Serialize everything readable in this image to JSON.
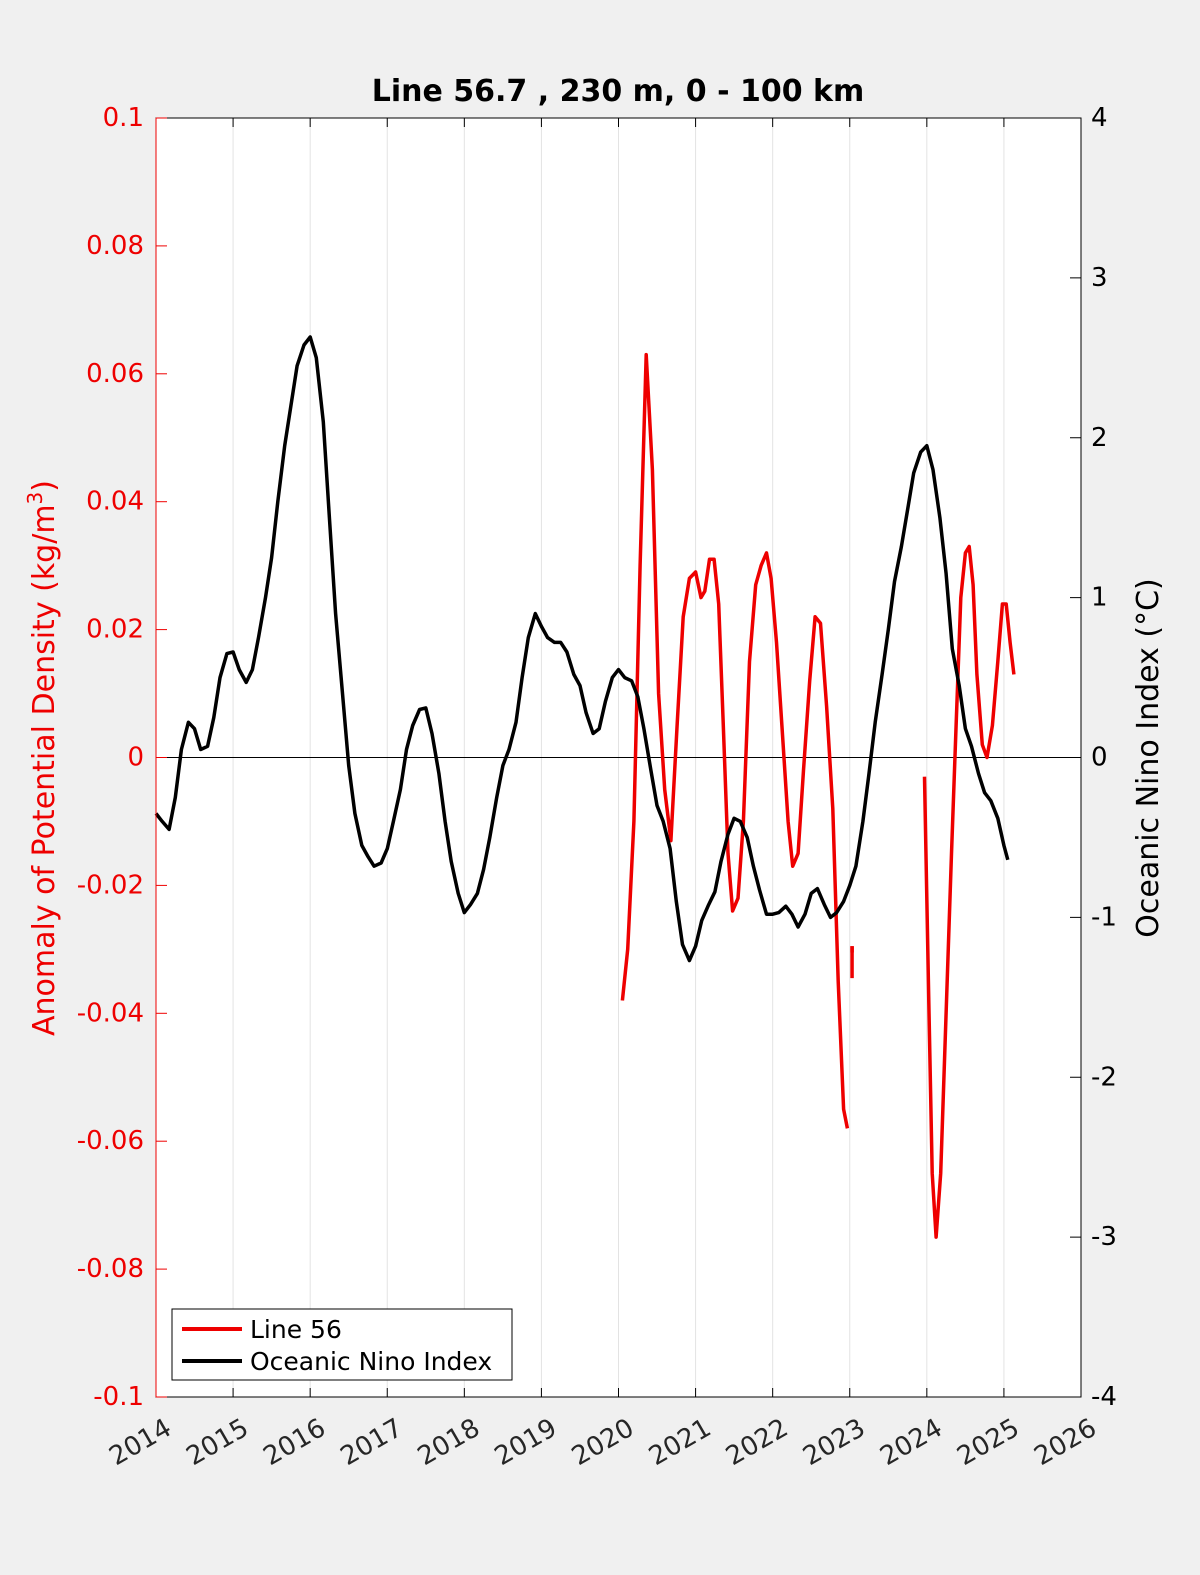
{
  "chart_data": {
    "type": "line",
    "title": "Line 56.7 , 230 m, 0 - 100 km",
    "ylabel_left": "Anomaly of Potential Density (kg/m",
    "ylabel_left_superscript": "3",
    "ylabel_left_suffix": ")",
    "ylabel_right": "Oceanic Nino Index (°C)",
    "xlim": [
      2014,
      2026
    ],
    "ylim_left": [
      -0.1,
      0.1
    ],
    "ylim_right": [
      -4,
      4
    ],
    "x_ticks": [
      "2014",
      "2015",
      "2016",
      "2017",
      "2018",
      "2019",
      "2020",
      "2021",
      "2022",
      "2023",
      "2024",
      "2025",
      "2026"
    ],
    "y_left_ticks": [
      "0.1",
      "0.08",
      "0.06",
      "0.04",
      "0.02",
      "0",
      "-0.02",
      "-0.04",
      "-0.06",
      "-0.08",
      "-0.1"
    ],
    "y_right_ticks": [
      "4",
      "3",
      "2",
      "1",
      "0",
      "-1",
      "-2",
      "-3",
      "-4"
    ],
    "grid": "vertical",
    "zero_line": true,
    "legend_position": "bottom-left",
    "colors": {
      "line56": "#ee0000",
      "oni": "#000000",
      "left_axis": "#ee0000",
      "right_axis": "#000000",
      "plot_bg": "#ffffff",
      "figure_bg": "#f0f0f0"
    },
    "series": [
      {
        "name": "Line 56",
        "axis": "left",
        "segments": [
          [
            [
              2020.05,
              -0.038
            ],
            [
              2020.12,
              -0.03
            ],
            [
              2020.2,
              -0.01
            ],
            [
              2020.28,
              0.03
            ],
            [
              2020.36,
              0.063
            ],
            [
              2020.44,
              0.045
            ],
            [
              2020.52,
              0.01
            ],
            [
              2020.6,
              -0.005
            ],
            [
              2020.68,
              -0.013
            ],
            [
              2020.76,
              0.005
            ],
            [
              2020.84,
              0.022
            ],
            [
              2020.92,
              0.028
            ],
            [
              2021.0,
              0.029
            ],
            [
              2021.07,
              0.025
            ],
            [
              2021.12,
              0.026
            ],
            [
              2021.18,
              0.031
            ],
            [
              2021.24,
              0.031
            ],
            [
              2021.3,
              0.024
            ],
            [
              2021.36,
              0.005
            ],
            [
              2021.42,
              -0.015
            ],
            [
              2021.48,
              -0.024
            ],
            [
              2021.55,
              -0.022
            ],
            [
              2021.62,
              -0.01
            ],
            [
              2021.7,
              0.015
            ],
            [
              2021.78,
              0.027
            ],
            [
              2021.85,
              0.03
            ],
            [
              2021.92,
              0.032
            ],
            [
              2021.98,
              0.028
            ],
            [
              2022.05,
              0.018
            ],
            [
              2022.12,
              0.005
            ],
            [
              2022.2,
              -0.01
            ],
            [
              2022.26,
              -0.017
            ],
            [
              2022.33,
              -0.015
            ],
            [
              2022.4,
              -0.002
            ],
            [
              2022.48,
              0.012
            ],
            [
              2022.55,
              0.022
            ],
            [
              2022.62,
              0.021
            ],
            [
              2022.7,
              0.008
            ],
            [
              2022.78,
              -0.008
            ],
            [
              2022.85,
              -0.035
            ],
            [
              2022.92,
              -0.055
            ],
            [
              2022.97,
              -0.058
            ]
          ],
          [
            [
              2023.03,
              -0.03
            ],
            [
              2023.03,
              -0.03
            ]
          ],
          [
            [
              2023.97,
              -0.003
            ],
            [
              2024.02,
              -0.035
            ],
            [
              2024.07,
              -0.065
            ],
            [
              2024.12,
              -0.075
            ],
            [
              2024.18,
              -0.065
            ],
            [
              2024.25,
              -0.04
            ],
            [
              2024.32,
              -0.015
            ],
            [
              2024.38,
              0.005
            ],
            [
              2024.44,
              0.025
            ],
            [
              2024.5,
              0.032
            ],
            [
              2024.55,
              0.033
            ],
            [
              2024.6,
              0.027
            ],
            [
              2024.65,
              0.013
            ],
            [
              2024.72,
              0.002
            ],
            [
              2024.78,
              0.0
            ],
            [
              2024.85,
              0.005
            ],
            [
              2024.92,
              0.015
            ],
            [
              2024.98,
              0.024
            ],
            [
              2025.03,
              0.024
            ],
            [
              2025.08,
              0.018
            ],
            [
              2025.13,
              0.013
            ]
          ]
        ]
      },
      {
        "name": "Oceanic Nino Index",
        "axis": "right",
        "points": [
          [
            2014.0,
            -0.35
          ],
          [
            2014.08,
            -0.4
          ],
          [
            2014.17,
            -0.45
          ],
          [
            2014.25,
            -0.25
          ],
          [
            2014.33,
            0.05
          ],
          [
            2014.42,
            0.22
          ],
          [
            2014.5,
            0.18
          ],
          [
            2014.58,
            0.05
          ],
          [
            2014.67,
            0.07
          ],
          [
            2014.75,
            0.25
          ],
          [
            2014.83,
            0.5
          ],
          [
            2014.92,
            0.65
          ],
          [
            2015.0,
            0.66
          ],
          [
            2015.08,
            0.55
          ],
          [
            2015.17,
            0.47
          ],
          [
            2015.25,
            0.55
          ],
          [
            2015.33,
            0.75
          ],
          [
            2015.42,
            1.0
          ],
          [
            2015.5,
            1.25
          ],
          [
            2015.58,
            1.6
          ],
          [
            2015.67,
            1.95
          ],
          [
            2015.75,
            2.2
          ],
          [
            2015.83,
            2.45
          ],
          [
            2015.92,
            2.58
          ],
          [
            2016.0,
            2.63
          ],
          [
            2016.08,
            2.5
          ],
          [
            2016.17,
            2.1
          ],
          [
            2016.25,
            1.5
          ],
          [
            2016.33,
            0.9
          ],
          [
            2016.42,
            0.4
          ],
          [
            2016.5,
            -0.05
          ],
          [
            2016.58,
            -0.35
          ],
          [
            2016.67,
            -0.55
          ],
          [
            2016.75,
            -0.62
          ],
          [
            2016.83,
            -0.68
          ],
          [
            2016.92,
            -0.66
          ],
          [
            2017.0,
            -0.57
          ],
          [
            2017.08,
            -0.4
          ],
          [
            2017.17,
            -0.2
          ],
          [
            2017.25,
            0.05
          ],
          [
            2017.33,
            0.2
          ],
          [
            2017.42,
            0.3
          ],
          [
            2017.5,
            0.31
          ],
          [
            2017.58,
            0.15
          ],
          [
            2017.67,
            -0.1
          ],
          [
            2017.75,
            -0.4
          ],
          [
            2017.83,
            -0.65
          ],
          [
            2017.92,
            -0.85
          ],
          [
            2018.0,
            -0.97
          ],
          [
            2018.08,
            -0.92
          ],
          [
            2018.17,
            -0.85
          ],
          [
            2018.25,
            -0.7
          ],
          [
            2018.33,
            -0.5
          ],
          [
            2018.42,
            -0.25
          ],
          [
            2018.5,
            -0.05
          ],
          [
            2018.58,
            0.05
          ],
          [
            2018.67,
            0.22
          ],
          [
            2018.75,
            0.5
          ],
          [
            2018.83,
            0.75
          ],
          [
            2018.92,
            0.9
          ],
          [
            2019.0,
            0.82
          ],
          [
            2019.08,
            0.75
          ],
          [
            2019.17,
            0.72
          ],
          [
            2019.25,
            0.72
          ],
          [
            2019.33,
            0.66
          ],
          [
            2019.42,
            0.52
          ],
          [
            2019.5,
            0.45
          ],
          [
            2019.58,
            0.28
          ],
          [
            2019.67,
            0.15
          ],
          [
            2019.75,
            0.18
          ],
          [
            2019.83,
            0.35
          ],
          [
            2019.92,
            0.5
          ],
          [
            2020.0,
            0.55
          ],
          [
            2020.08,
            0.5
          ],
          [
            2020.17,
            0.48
          ],
          [
            2020.25,
            0.38
          ],
          [
            2020.33,
            0.18
          ],
          [
            2020.42,
            -0.08
          ],
          [
            2020.5,
            -0.3
          ],
          [
            2020.58,
            -0.4
          ],
          [
            2020.67,
            -0.57
          ],
          [
            2020.75,
            -0.9
          ],
          [
            2020.83,
            -1.17
          ],
          [
            2020.92,
            -1.27
          ],
          [
            2021.0,
            -1.18
          ],
          [
            2021.08,
            -1.02
          ],
          [
            2021.17,
            -0.92
          ],
          [
            2021.25,
            -0.84
          ],
          [
            2021.33,
            -0.65
          ],
          [
            2021.42,
            -0.48
          ],
          [
            2021.5,
            -0.38
          ],
          [
            2021.58,
            -0.4
          ],
          [
            2021.67,
            -0.5
          ],
          [
            2021.75,
            -0.68
          ],
          [
            2021.83,
            -0.83
          ],
          [
            2021.92,
            -0.98
          ],
          [
            2022.0,
            -0.98
          ],
          [
            2022.08,
            -0.97
          ],
          [
            2022.17,
            -0.93
          ],
          [
            2022.25,
            -0.98
          ],
          [
            2022.33,
            -1.06
          ],
          [
            2022.42,
            -0.98
          ],
          [
            2022.5,
            -0.85
          ],
          [
            2022.58,
            -0.82
          ],
          [
            2022.67,
            -0.92
          ],
          [
            2022.75,
            -1.0
          ],
          [
            2022.83,
            -0.97
          ],
          [
            2022.92,
            -0.9
          ],
          [
            2023.0,
            -0.8
          ],
          [
            2023.08,
            -0.68
          ],
          [
            2023.17,
            -0.4
          ],
          [
            2023.25,
            -0.1
          ],
          [
            2023.33,
            0.22
          ],
          [
            2023.42,
            0.52
          ],
          [
            2023.5,
            0.8
          ],
          [
            2023.58,
            1.1
          ],
          [
            2023.67,
            1.32
          ],
          [
            2023.75,
            1.55
          ],
          [
            2023.83,
            1.78
          ],
          [
            2023.92,
            1.91
          ],
          [
            2024.0,
            1.95
          ],
          [
            2024.08,
            1.8
          ],
          [
            2024.17,
            1.5
          ],
          [
            2024.25,
            1.15
          ],
          [
            2024.33,
            0.68
          ],
          [
            2024.42,
            0.45
          ],
          [
            2024.5,
            0.18
          ],
          [
            2024.58,
            0.07
          ],
          [
            2024.67,
            -0.1
          ],
          [
            2024.75,
            -0.22
          ],
          [
            2024.83,
            -0.27
          ],
          [
            2024.92,
            -0.38
          ],
          [
            2025.0,
            -0.55
          ],
          [
            2025.05,
            -0.64
          ]
        ]
      }
    ]
  }
}
